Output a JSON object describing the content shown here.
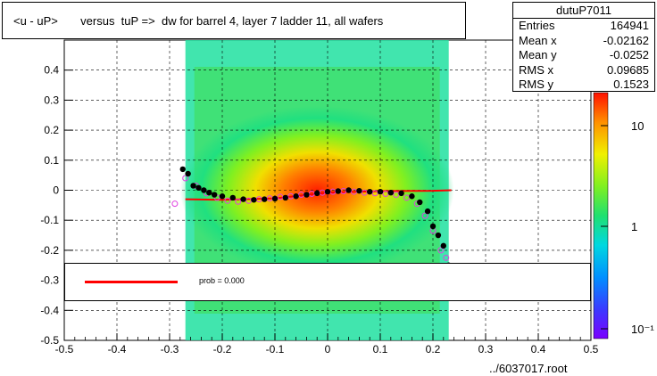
{
  "title": "<u - uP>       versus  tuP =>  dw for barrel 4, layer 7 ladder 11, all wafers",
  "stats": {
    "name": "dutuP7011",
    "rows": [
      {
        "label": "Entries",
        "value": "164941"
      },
      {
        "label": "Mean x",
        "value": "-0.02162"
      },
      {
        "label": "Mean y",
        "value": "-0.0252"
      },
      {
        "label": "RMS x",
        "value": "0.09685"
      },
      {
        "label": "RMS y",
        "value": "0.1523"
      }
    ]
  },
  "footer": "../6037017.root",
  "legend": {
    "entry": "prob = 0.000",
    "color": "#ff0000"
  },
  "chart_data": {
    "type": "heatmap",
    "xlim": [
      -0.5,
      0.5
    ],
    "ylim": [
      -0.5,
      0.5
    ],
    "x_ticks": [
      -0.5,
      -0.4,
      -0.3,
      -0.2,
      -0.1,
      0,
      0.1,
      0.2,
      0.3,
      0.4,
      0.5
    ],
    "y_ticks": [
      -0.5,
      -0.4,
      -0.3,
      -0.2,
      -0.1,
      0,
      0.1,
      0.2,
      0.3,
      0.4
    ],
    "colorbar_ticks": [
      "10",
      "1",
      "10⁻¹"
    ],
    "grid": true,
    "density_x_range": [
      -0.27,
      0.23
    ],
    "profile_black": [
      [
        -0.275,
        0.07
      ],
      [
        -0.265,
        0.055
      ],
      [
        -0.255,
        0.015
      ],
      [
        -0.245,
        0.008
      ],
      [
        -0.235,
        0.0
      ],
      [
        -0.225,
        -0.008
      ],
      [
        -0.215,
        -0.015
      ],
      [
        -0.2,
        -0.02
      ],
      [
        -0.18,
        -0.025
      ],
      [
        -0.16,
        -0.03
      ],
      [
        -0.14,
        -0.032
      ],
      [
        -0.12,
        -0.03
      ],
      [
        -0.1,
        -0.028
      ],
      [
        -0.08,
        -0.025
      ],
      [
        -0.06,
        -0.02
      ],
      [
        -0.04,
        -0.015
      ],
      [
        -0.02,
        -0.01
      ],
      [
        0.0,
        -0.005
      ],
      [
        0.02,
        -0.003
      ],
      [
        0.04,
        0.0
      ],
      [
        0.06,
        -0.002
      ],
      [
        0.08,
        -0.005
      ],
      [
        0.1,
        -0.005
      ],
      [
        0.12,
        -0.008
      ],
      [
        0.14,
        -0.01
      ],
      [
        0.16,
        -0.02
      ],
      [
        0.175,
        -0.04
      ],
      [
        0.19,
        -0.07
      ],
      [
        0.2,
        -0.12
      ],
      [
        0.21,
        -0.15
      ],
      [
        0.22,
        -0.185
      ],
      [
        0.23,
        -0.25
      ]
    ],
    "profile_open": [
      [
        -0.29,
        -0.045
      ],
      [
        -0.27,
        0.04
      ],
      [
        -0.25,
        0.015
      ],
      [
        -0.23,
        -0.01
      ],
      [
        -0.21,
        -0.025
      ],
      [
        -0.19,
        -0.035
      ],
      [
        -0.17,
        -0.038
      ],
      [
        -0.15,
        -0.035
      ],
      [
        -0.13,
        -0.03
      ],
      [
        -0.11,
        -0.027
      ],
      [
        -0.09,
        -0.022
      ],
      [
        -0.07,
        -0.02
      ],
      [
        -0.05,
        -0.015
      ],
      [
        -0.03,
        -0.012
      ],
      [
        -0.01,
        -0.008
      ],
      [
        0.01,
        -0.005
      ],
      [
        0.03,
        -0.003
      ],
      [
        0.05,
        -0.005
      ],
      [
        0.07,
        -0.008
      ],
      [
        0.09,
        -0.01
      ],
      [
        0.11,
        -0.012
      ],
      [
        0.13,
        -0.015
      ],
      [
        0.15,
        -0.025
      ],
      [
        0.17,
        -0.045
      ],
      [
        0.185,
        -0.085
      ],
      [
        0.2,
        -0.135
      ],
      [
        0.215,
        -0.2
      ],
      [
        0.225,
        -0.225
      ]
    ],
    "fit_curve": [
      [
        -0.27,
        -0.03
      ],
      [
        -0.2,
        -0.032
      ],
      [
        -0.1,
        -0.027
      ],
      [
        0.0,
        -0.008
      ],
      [
        0.1,
        -0.003
      ],
      [
        0.2,
        -0.002
      ],
      [
        0.235,
        0.0
      ]
    ]
  }
}
